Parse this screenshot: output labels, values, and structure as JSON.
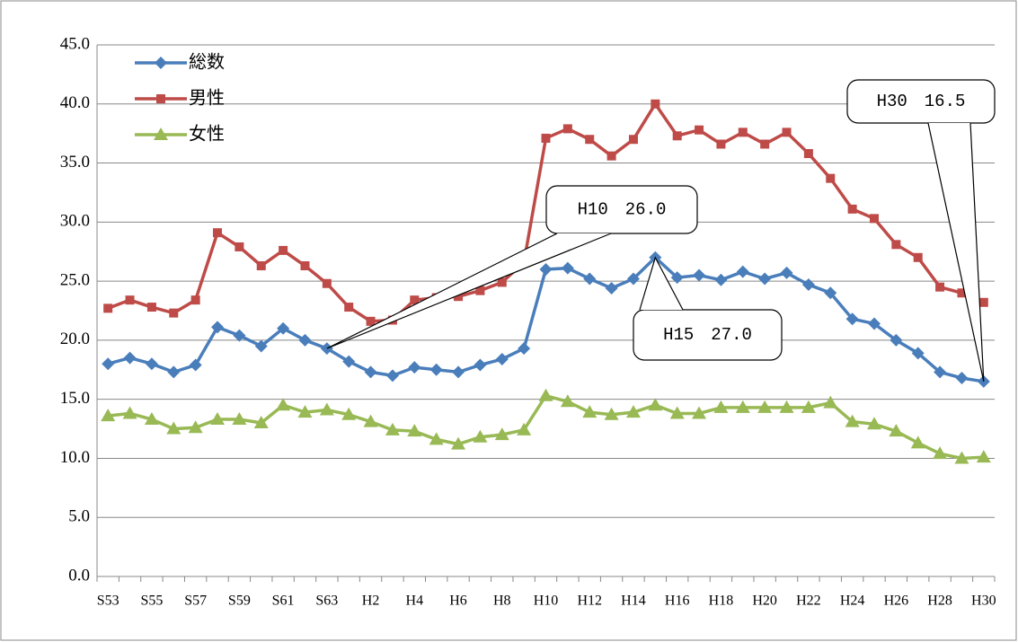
{
  "chart_data": {
    "type": "line",
    "categories": [
      "S53",
      null,
      "S55",
      null,
      "S57",
      null,
      "S59",
      null,
      "S61",
      null,
      "S63",
      null,
      "H2",
      null,
      "H4",
      null,
      "H6",
      null,
      "H8",
      null,
      "H10",
      null,
      "H12",
      null,
      "H14",
      null,
      "H16",
      null,
      "H18",
      null,
      "H20",
      null,
      "H22",
      null,
      "H24",
      null,
      "H26",
      null,
      "H28",
      null,
      "H30"
    ],
    "series": [
      {
        "name": "総数",
        "color": "#4a7ebb",
        "marker": "diamond",
        "values": [
          18.0,
          18.5,
          18.0,
          17.3,
          17.9,
          21.1,
          20.4,
          19.5,
          21.0,
          20.0,
          19.3,
          18.2,
          17.3,
          17.0,
          17.7,
          17.5,
          17.3,
          17.9,
          18.4,
          19.3,
          26.0,
          26.1,
          25.2,
          24.4,
          25.2,
          27.0,
          25.3,
          25.5,
          25.1,
          25.8,
          25.2,
          25.7,
          24.7,
          24.0,
          21.8,
          21.4,
          20.0,
          18.9,
          17.3,
          16.8,
          16.5
        ]
      },
      {
        "name": "男性",
        "color": "#be4b48",
        "marker": "square",
        "values": [
          22.7,
          23.4,
          22.8,
          22.3,
          23.4,
          29.1,
          27.9,
          26.3,
          27.6,
          26.3,
          24.8,
          22.8,
          21.6,
          21.7,
          23.4,
          23.6,
          23.7,
          24.2,
          24.9,
          26.6,
          37.1,
          37.9,
          37.0,
          35.6,
          37.0,
          40.0,
          37.3,
          37.8,
          36.6,
          37.6,
          36.6,
          37.6,
          35.8,
          33.7,
          31.1,
          30.3,
          28.1,
          27.0,
          24.5,
          24.0,
          23.2
        ]
      },
      {
        "name": "女性",
        "color": "#98b954",
        "marker": "triangle",
        "values": [
          13.6,
          13.8,
          13.3,
          12.5,
          12.6,
          13.3,
          13.3,
          13.0,
          14.5,
          13.9,
          14.1,
          13.7,
          13.1,
          12.4,
          12.3,
          11.6,
          11.2,
          11.8,
          12.0,
          12.4,
          15.3,
          14.8,
          13.9,
          13.7,
          13.9,
          14.5,
          13.8,
          13.8,
          14.3,
          14.3,
          14.3,
          14.3,
          14.3,
          14.7,
          13.1,
          12.9,
          12.3,
          11.3,
          10.4,
          10.0,
          10.1
        ]
      }
    ],
    "ylim": [
      0,
      45
    ],
    "yticks": [
      {
        "value": 0,
        "label": "0.0"
      },
      {
        "value": 5,
        "label": "5.0"
      },
      {
        "value": 10,
        "label": "10.0"
      },
      {
        "value": 15,
        "label": "15.0"
      },
      {
        "value": 20,
        "label": "20.0"
      },
      {
        "value": 25,
        "label": "25.0"
      },
      {
        "value": 30,
        "label": "30.0"
      },
      {
        "value": 35,
        "label": "35.0"
      },
      {
        "value": 40,
        "label": "40.0"
      },
      {
        "value": 45,
        "label": "45.0"
      }
    ],
    "grid": true,
    "legend": "upper left",
    "annotations": [
      "H10　26.0",
      "H15　27.0",
      "H30　16.5"
    ]
  }
}
